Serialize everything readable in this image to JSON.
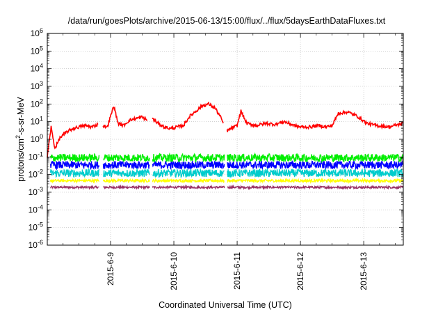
{
  "chart_data": {
    "type": "line",
    "title": "/data/run/goesPlots/archive/2015-06-13/15:00/flux/../flux/5daysEarthDataFluxes.txt",
    "xlabel": "Coordinated Universal Time (UTC)",
    "ylabel_main": "protons/cm",
    "ylabel_sup": "2",
    "ylabel_tail": "-s-sr-MeV",
    "yscale": "log",
    "ylim": [
      1e-06,
      1000000.0
    ],
    "yticks": [
      {
        "mantissa": "10",
        "exp": "6"
      },
      {
        "mantissa": "10",
        "exp": "5"
      },
      {
        "mantissa": "10",
        "exp": "4"
      },
      {
        "mantissa": "10",
        "exp": "3"
      },
      {
        "mantissa": "10",
        "exp": "2"
      },
      {
        "mantissa": "10",
        "exp": "1"
      },
      {
        "mantissa": "10",
        "exp": "0"
      },
      {
        "mantissa": "10",
        "exp": "-1"
      },
      {
        "mantissa": "10",
        "exp": "-2"
      },
      {
        "mantissa": "10",
        "exp": "-3"
      },
      {
        "mantissa": "10",
        "exp": "-4"
      },
      {
        "mantissa": "10",
        "exp": "-5"
      },
      {
        "mantissa": "10",
        "exp": "-6"
      }
    ],
    "xlim": [
      "2015-06-08T00:00",
      "2015-06-13T15:00"
    ],
    "xticks": [
      "2015-6-9",
      "2015-6-10",
      "2015-6-11",
      "2015-6-12",
      "2015-6-13"
    ],
    "grid": true,
    "gaps": [
      [
        0.82,
        0.88
      ],
      [
        1.62,
        1.66
      ],
      [
        2.8,
        2.84
      ]
    ],
    "series": [
      {
        "color": "#ff0000",
        "role": "channel-1",
        "segments": [
          {
            "x": [
              0.0,
              0.06,
              0.12,
              0.2,
              0.3,
              0.4,
              0.5,
              0.6,
              0.7,
              0.76,
              0.8
            ],
            "y": [
              0.1,
              5,
              0.3,
              1.2,
              2.5,
              4,
              5,
              6,
              5,
              6,
              7
            ]
          },
          {
            "x": [
              0.88,
              0.95,
              1.05,
              1.12,
              1.2,
              1.3,
              1.4,
              1.5,
              1.58
            ],
            "y": [
              6,
              5,
              80,
              8,
              6,
              12,
              15,
              18,
              12
            ]
          },
          {
            "x": [
              1.66,
              1.75,
              1.85,
              1.95,
              2.05,
              2.15,
              2.25,
              2.35,
              2.45,
              2.55,
              2.65,
              2.75,
              2.78
            ],
            "y": [
              15,
              8,
              5,
              4,
              5,
              6,
              20,
              40,
              80,
              100,
              60,
              15,
              8
            ]
          },
          {
            "x": [
              2.84,
              2.9,
              3.0,
              3.06,
              3.15,
              3.3,
              3.45,
              3.6,
              3.75,
              3.9,
              4.0,
              4.15,
              4.3,
              4.4,
              4.5,
              4.6,
              4.75,
              4.9,
              5.05,
              5.2,
              5.4,
              5.62
            ],
            "y": [
              3,
              4,
              6,
              40,
              8,
              6,
              8,
              7,
              10,
              6,
              5,
              5,
              6,
              5,
              6,
              30,
              35,
              20,
              8,
              6,
              5,
              8
            ]
          }
        ]
      },
      {
        "color": "#00ee00",
        "role": "channel-2",
        "level": 0.09
      },
      {
        "color": "#0000ff",
        "role": "channel-3",
        "level": 0.035
      },
      {
        "color": "#00cccc",
        "role": "channel-4",
        "level": 0.012
      },
      {
        "color": "#ffff00",
        "role": "channel-5",
        "level": 0.0045
      },
      {
        "color": "#993366",
        "role": "channel-6",
        "level": 0.0019
      }
    ]
  }
}
